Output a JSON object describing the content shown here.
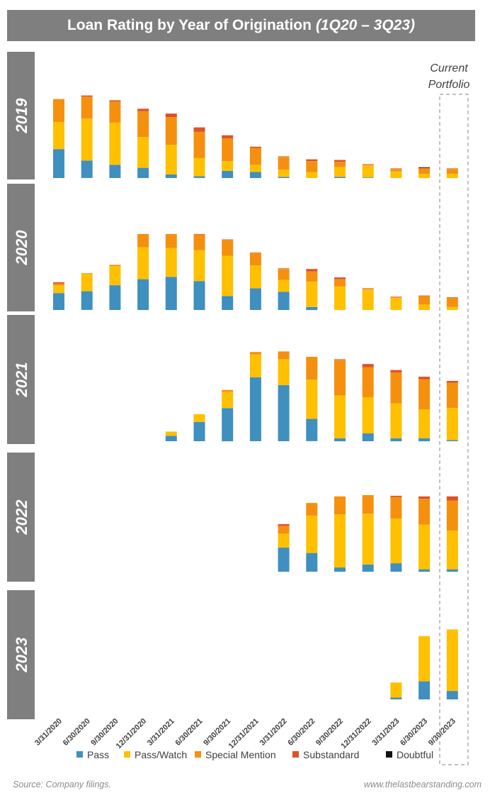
{
  "header": {
    "title_main": "Loan Rating by Year of Origination",
    "title_range": "(1Q20 – 3Q23)"
  },
  "annotation": {
    "line1": "Current",
    "line2": "Portfolio"
  },
  "footer": {
    "source": "Source: Company filings.",
    "site": "www.thelastbearstanding.com"
  },
  "colors": {
    "Pass": "#3f8fbf",
    "Pass/Watch": "#ffc000",
    "Special Mention": "#f5900f",
    "Substandard": "#e0502a",
    "Doubtful": "#111111",
    "panel_label_bg": "#7f7f7f"
  },
  "chart_data": {
    "type": "bar",
    "stacked": true,
    "title": "Loan Rating by Year of Origination (1Q20 – 3Q23)",
    "xlabel": "",
    "ylabel": "",
    "categories": [
      "3/31/2020",
      "6/30/2020",
      "9/30/2020",
      "12/31/2020",
      "3/31/2021",
      "6/30/2021",
      "9/30/2021",
      "12/31/2021",
      "3/31/2022",
      "6/30/2022",
      "9/30/2022",
      "12/31/2022",
      "3/31/2023",
      "6/30/2023",
      "9/30/2023"
    ],
    "series_names": [
      "Pass",
      "Pass/Watch",
      "Special Mention",
      "Substandard",
      "Doubtful"
    ],
    "legend": [
      "Pass",
      "Pass/Watch",
      "Special Mention",
      "Substandard",
      "Doubtful"
    ],
    "legend_position": "bottom",
    "highlight": {
      "category": "9/30/2023",
      "label": "Current Portfolio"
    },
    "ylim": [
      0,
      145
    ],
    "panels": [
      {
        "label": "2019",
        "values": [
          [
            48,
            45,
            38,
            0,
            0
          ],
          [
            29,
            70,
            36,
            2,
            0
          ],
          [
            22,
            70,
            35,
            2,
            0
          ],
          [
            17,
            51,
            43,
            4,
            0
          ],
          [
            6,
            49,
            46,
            6,
            0
          ],
          [
            3,
            30,
            44,
            7,
            0
          ],
          [
            12,
            16,
            38,
            5,
            0
          ],
          [
            10,
            12,
            28,
            2,
            0
          ],
          [
            2,
            12,
            21,
            1,
            0
          ],
          [
            0,
            10,
            18,
            3,
            0
          ],
          [
            2,
            16,
            9,
            3,
            0
          ],
          [
            1,
            20,
            1,
            1,
            0
          ],
          [
            0,
            11,
            4,
            1,
            0
          ],
          [
            0,
            7,
            9,
            1,
            1
          ],
          [
            0,
            7,
            8,
            1,
            0
          ]
        ]
      },
      {
        "label": "2020",
        "values": [
          [
            28,
            13,
            3,
            2,
            0
          ],
          [
            31,
            29,
            1,
            0,
            0
          ],
          [
            41,
            32,
            2,
            0,
            0
          ],
          [
            51,
            53,
            22,
            0,
            0
          ],
          [
            55,
            48,
            23,
            0,
            0
          ],
          [
            48,
            51,
            26,
            1,
            0
          ],
          [
            23,
            67,
            26,
            1,
            0
          ],
          [
            36,
            38,
            20,
            1,
            0
          ],
          [
            30,
            20,
            18,
            1,
            0
          ],
          [
            5,
            42,
            17,
            4,
            0
          ],
          [
            0,
            39,
            12,
            3,
            0
          ],
          [
            0,
            34,
            1,
            1,
            0
          ],
          [
            0,
            20,
            1,
            1,
            0
          ],
          [
            0,
            9,
            14,
            1,
            0
          ],
          [
            0,
            5,
            15,
            1,
            0
          ]
        ]
      },
      {
        "label": "2021",
        "values": [
          [
            0,
            0,
            0,
            0,
            0
          ],
          [
            0,
            0,
            0,
            0,
            0
          ],
          [
            0,
            0,
            0,
            0,
            0
          ],
          [
            0,
            0,
            0,
            0,
            0
          ],
          [
            9,
            7,
            0,
            0,
            0
          ],
          [
            32,
            13,
            0,
            0,
            0
          ],
          [
            55,
            27,
            3,
            0,
            0
          ],
          [
            106,
            38,
            4,
            0,
            0
          ],
          [
            93,
            43,
            13,
            0,
            0
          ],
          [
            37,
            65,
            38,
            0,
            0
          ],
          [
            5,
            71,
            59,
            1,
            0
          ],
          [
            13,
            60,
            50,
            5,
            0
          ],
          [
            5,
            58,
            51,
            4,
            0
          ],
          [
            5,
            48,
            50,
            4,
            0
          ],
          [
            2,
            53,
            42,
            3,
            0
          ]
        ]
      },
      {
        "label": "2022",
        "values": [
          [
            0,
            0,
            0,
            0,
            0
          ],
          [
            0,
            0,
            0,
            0,
            0
          ],
          [
            0,
            0,
            0,
            0,
            0
          ],
          [
            0,
            0,
            0,
            0,
            0
          ],
          [
            0,
            0,
            0,
            0,
            0
          ],
          [
            0,
            0,
            0,
            0,
            0
          ],
          [
            0,
            0,
            0,
            0,
            0
          ],
          [
            0,
            0,
            0,
            0,
            0
          ],
          [
            40,
            23,
            13,
            3,
            0
          ],
          [
            31,
            62,
            21,
            0,
            0
          ],
          [
            7,
            88,
            30,
            0,
            0
          ],
          [
            12,
            84,
            31,
            0,
            0
          ],
          [
            14,
            74,
            36,
            2,
            0
          ],
          [
            4,
            74,
            43,
            4,
            0
          ],
          [
            4,
            64,
            50,
            7,
            0
          ]
        ]
      },
      {
        "label": "2023",
        "values": [
          [
            0,
            0,
            0,
            0,
            0
          ],
          [
            0,
            0,
            0,
            0,
            0
          ],
          [
            0,
            0,
            0,
            0,
            0
          ],
          [
            0,
            0,
            0,
            0,
            0
          ],
          [
            0,
            0,
            0,
            0,
            0
          ],
          [
            0,
            0,
            0,
            0,
            0
          ],
          [
            0,
            0,
            0,
            0,
            0
          ],
          [
            0,
            0,
            0,
            0,
            0
          ],
          [
            0,
            0,
            0,
            0,
            0
          ],
          [
            0,
            0,
            0,
            0,
            0
          ],
          [
            0,
            0,
            0,
            0,
            0
          ],
          [
            0,
            0,
            0,
            0,
            0
          ],
          [
            3,
            25,
            0,
            0,
            0
          ],
          [
            30,
            75,
            0,
            0,
            0
          ],
          [
            14,
            102,
            0,
            0,
            0
          ]
        ]
      }
    ]
  }
}
